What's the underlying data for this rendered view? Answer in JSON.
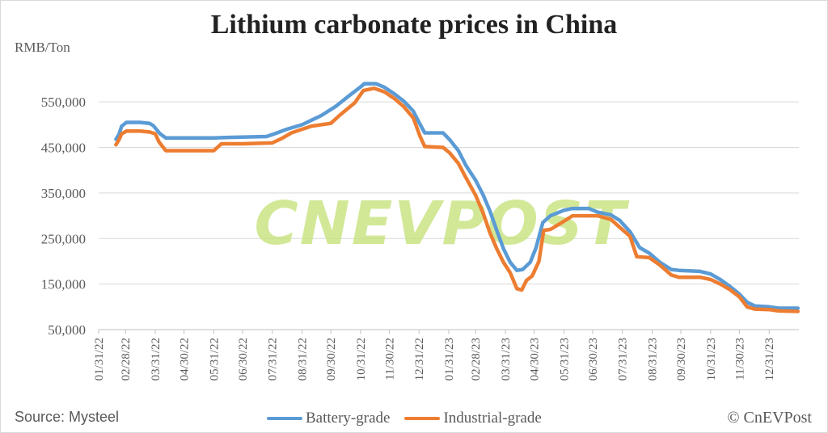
{
  "header": {
    "title": "Lithium carbonate prices in China",
    "unit": "RMB/Ton"
  },
  "footer": {
    "source": "Source: Mysteel",
    "copyright": "© CnEVPost"
  },
  "watermark": "CNEVPOST",
  "colors": {
    "battery": "#5b9bd5",
    "industrial": "#ed7d31",
    "grid": "#d9d9d9",
    "watermark": "#c6e27a"
  },
  "chart_data": {
    "type": "line",
    "title": "Lithium carbonate prices in China",
    "ylabel": "RMB/Ton",
    "ylim": [
      50000,
      600000
    ],
    "yticks": [
      50000,
      150000,
      250000,
      350000,
      450000,
      550000
    ],
    "ytick_labels": [
      "50,000",
      "150,000",
      "250,000",
      "350,000",
      "450,000",
      "550,000"
    ],
    "xlim": [
      "2022-01-31",
      "2024-01-31"
    ],
    "xticks": [
      "2022-01-31",
      "2022-02-28",
      "2022-03-31",
      "2022-04-30",
      "2022-05-31",
      "2022-06-30",
      "2022-07-31",
      "2022-08-31",
      "2022-09-30",
      "2022-10-31",
      "2022-11-30",
      "2022-12-31",
      "2023-01-31",
      "2023-02-28",
      "2023-03-31",
      "2023-04-30",
      "2023-05-31",
      "2023-06-30",
      "2023-07-31",
      "2023-08-31",
      "2023-09-30",
      "2023-10-31",
      "2023-11-30",
      "2023-12-31"
    ],
    "xtick_labels": [
      "01/31/22",
      "02/28/22",
      "03/31/22",
      "04/30/22",
      "05/31/22",
      "06/30/22",
      "07/31/22",
      "08/31/22",
      "09/30/22",
      "10/31/22",
      "11/30/22",
      "12/31/22",
      "01/31/23",
      "02/28/23",
      "03/31/23",
      "04/30/23",
      "05/31/23",
      "06/30/23",
      "07/31/23",
      "08/31/23",
      "09/30/23",
      "10/31/23",
      "11/30/23",
      "12/31/23"
    ],
    "legend_position": "bottom",
    "grid": true,
    "series": [
      {
        "name": "Battery-grade",
        "points": [
          [
            "2022-02-18",
            468000
          ],
          [
            "2022-02-21",
            478000
          ],
          [
            "2022-02-24",
            497000
          ],
          [
            "2022-03-01",
            505000
          ],
          [
            "2022-03-15",
            505000
          ],
          [
            "2022-03-25",
            503000
          ],
          [
            "2022-03-29",
            498000
          ],
          [
            "2022-04-05",
            480000
          ],
          [
            "2022-04-11",
            471000
          ],
          [
            "2022-05-31",
            471000
          ],
          [
            "2022-06-15",
            472000
          ],
          [
            "2022-07-25",
            474000
          ],
          [
            "2022-08-05",
            482000
          ],
          [
            "2022-08-15",
            490000
          ],
          [
            "2022-08-31",
            500000
          ],
          [
            "2022-09-10",
            510000
          ],
          [
            "2022-09-20",
            520000
          ],
          [
            "2022-10-05",
            540000
          ],
          [
            "2022-10-20",
            565000
          ],
          [
            "2022-10-31",
            583000
          ],
          [
            "2022-11-04",
            590000
          ],
          [
            "2022-11-16",
            590000
          ],
          [
            "2022-11-25",
            582000
          ],
          [
            "2022-12-05",
            568000
          ],
          [
            "2022-12-15",
            552000
          ],
          [
            "2022-12-25",
            530000
          ],
          [
            "2022-12-31",
            505000
          ],
          [
            "2023-01-06",
            482000
          ],
          [
            "2023-01-25",
            482000
          ],
          [
            "2023-02-01",
            467000
          ],
          [
            "2023-02-10",
            443000
          ],
          [
            "2023-02-18",
            410000
          ],
          [
            "2023-02-28",
            378000
          ],
          [
            "2023-03-08",
            345000
          ],
          [
            "2023-03-15",
            310000
          ],
          [
            "2023-03-22",
            268000
          ],
          [
            "2023-03-29",
            228000
          ],
          [
            "2023-04-05",
            198000
          ],
          [
            "2023-04-12",
            180000
          ],
          [
            "2023-04-18",
            182000
          ],
          [
            "2023-04-26",
            198000
          ],
          [
            "2023-05-02",
            230000
          ],
          [
            "2023-05-09",
            285000
          ],
          [
            "2023-05-17",
            300000
          ],
          [
            "2023-05-31",
            312000
          ],
          [
            "2023-06-09",
            316000
          ],
          [
            "2023-06-26",
            316000
          ],
          [
            "2023-07-05",
            308000
          ],
          [
            "2023-07-19",
            302000
          ],
          [
            "2023-07-28",
            290000
          ],
          [
            "2023-08-08",
            265000
          ],
          [
            "2023-08-18",
            230000
          ],
          [
            "2023-08-28",
            218000
          ],
          [
            "2023-09-08",
            198000
          ],
          [
            "2023-09-20",
            182000
          ],
          [
            "2023-09-28",
            180000
          ],
          [
            "2023-10-20",
            178000
          ],
          [
            "2023-10-31",
            172000
          ],
          [
            "2023-11-10",
            160000
          ],
          [
            "2023-11-20",
            145000
          ],
          [
            "2023-11-30",
            128000
          ],
          [
            "2023-12-08",
            110000
          ],
          [
            "2023-12-16",
            102000
          ],
          [
            "2023-12-31",
            100000
          ],
          [
            "2024-01-10",
            97000
          ],
          [
            "2024-01-30",
            97000
          ]
        ]
      },
      {
        "name": "Industrial-grade",
        "points": [
          [
            "2022-02-18",
            456000
          ],
          [
            "2022-02-21",
            466000
          ],
          [
            "2022-02-24",
            480000
          ],
          [
            "2022-03-01",
            486000
          ],
          [
            "2022-03-15",
            486000
          ],
          [
            "2022-03-25",
            484000
          ],
          [
            "2022-03-31",
            480000
          ],
          [
            "2022-04-04",
            462000
          ],
          [
            "2022-04-11",
            443000
          ],
          [
            "2022-05-31",
            443000
          ],
          [
            "2022-06-08",
            458000
          ],
          [
            "2022-06-30",
            458000
          ],
          [
            "2022-07-31",
            460000
          ],
          [
            "2022-08-10",
            470000
          ],
          [
            "2022-08-20",
            482000
          ],
          [
            "2022-08-31",
            490000
          ],
          [
            "2022-09-10",
            497000
          ],
          [
            "2022-09-30",
            503000
          ],
          [
            "2022-10-10",
            522000
          ],
          [
            "2022-10-25",
            548000
          ],
          [
            "2022-11-03",
            575000
          ],
          [
            "2022-11-14",
            580000
          ],
          [
            "2022-11-25",
            572000
          ],
          [
            "2022-12-05",
            558000
          ],
          [
            "2022-12-15",
            540000
          ],
          [
            "2022-12-25",
            515000
          ],
          [
            "2023-01-01",
            475000
          ],
          [
            "2023-01-06",
            452000
          ],
          [
            "2023-01-25",
            450000
          ],
          [
            "2023-02-01",
            438000
          ],
          [
            "2023-02-10",
            415000
          ],
          [
            "2023-02-18",
            383000
          ],
          [
            "2023-02-28",
            345000
          ],
          [
            "2023-03-08",
            305000
          ],
          [
            "2023-03-15",
            262000
          ],
          [
            "2023-03-22",
            228000
          ],
          [
            "2023-03-29",
            198000
          ],
          [
            "2023-04-05",
            175000
          ],
          [
            "2023-04-12",
            140000
          ],
          [
            "2023-04-17",
            137000
          ],
          [
            "2023-04-22",
            158000
          ],
          [
            "2023-04-28",
            168000
          ],
          [
            "2023-05-05",
            200000
          ],
          [
            "2023-05-10",
            268000
          ],
          [
            "2023-05-17",
            270000
          ],
          [
            "2023-05-31",
            288000
          ],
          [
            "2023-06-09",
            300000
          ],
          [
            "2023-06-26",
            300000
          ],
          [
            "2023-07-05",
            300000
          ],
          [
            "2023-07-19",
            292000
          ],
          [
            "2023-07-28",
            275000
          ],
          [
            "2023-08-08",
            255000
          ],
          [
            "2023-08-15",
            210000
          ],
          [
            "2023-08-28",
            208000
          ],
          [
            "2023-09-08",
            192000
          ],
          [
            "2023-09-20",
            170000
          ],
          [
            "2023-09-28",
            165000
          ],
          [
            "2023-10-20",
            165000
          ],
          [
            "2023-10-31",
            160000
          ],
          [
            "2023-11-10",
            150000
          ],
          [
            "2023-11-20",
            138000
          ],
          [
            "2023-11-30",
            122000
          ],
          [
            "2023-12-08",
            100000
          ],
          [
            "2023-12-16",
            95000
          ],
          [
            "2023-12-31",
            94000
          ],
          [
            "2024-01-10",
            91000
          ],
          [
            "2024-01-30",
            90000
          ]
        ]
      }
    ]
  }
}
